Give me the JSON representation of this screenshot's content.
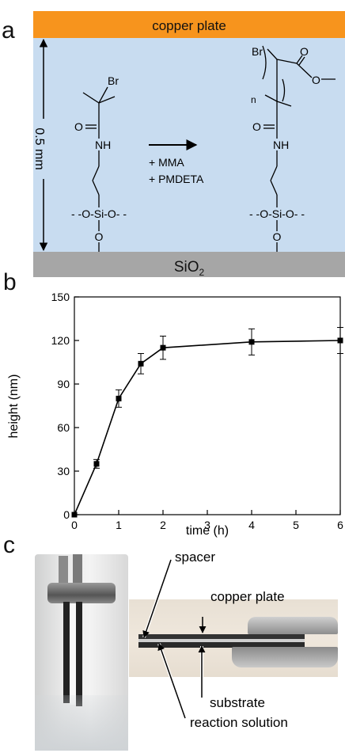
{
  "panel_a": {
    "letter": "a",
    "copper_label": "copper plate",
    "substrate_label": "SiO",
    "substrate_sub": "2",
    "gap_label": "0.5 mm",
    "arrow_reagent_1": "+ MMA",
    "arrow_reagent_2": "+ PMDETA",
    "left_molecule": {
      "br": "Br",
      "o": "O",
      "nh": "NH",
      "si_line": "- -O-Si-O- -",
      "o_bottom": "O"
    },
    "right_molecule": {
      "br": "Br",
      "o": "O",
      "nh": "NH",
      "n": "n",
      "si_line": "- -O-Si-O- -",
      "o_bottom": "O",
      "ester_o1": "O",
      "ester_o2": "O"
    },
    "colors": {
      "copper": "#f7941d",
      "solution": "#c8dcf0",
      "sio2": "#a6a6a6"
    }
  },
  "panel_b": {
    "letter": "b",
    "chart_data": {
      "type": "line",
      "x": [
        0,
        0.5,
        1,
        1.5,
        2,
        4,
        6
      ],
      "y": [
        0,
        35,
        80,
        104,
        115,
        119,
        120
      ],
      "err": [
        0,
        3,
        6,
        7,
        8,
        9,
        9
      ],
      "xlabel": "time (h)",
      "ylabel": "height (nm)",
      "xlim": [
        0,
        6
      ],
      "ylim": [
        0,
        150
      ],
      "xticks": [
        "0",
        "1",
        "2",
        "3",
        "4",
        "5",
        "6"
      ],
      "yticks": [
        "0",
        "30",
        "60",
        "90",
        "120",
        "150"
      ],
      "marker": "square",
      "grid": false
    }
  },
  "panel_c": {
    "letter": "c",
    "labels": {
      "spacer": "spacer",
      "copper": "copper plate",
      "substrate": "substrate",
      "solution": "reaction solution"
    }
  }
}
